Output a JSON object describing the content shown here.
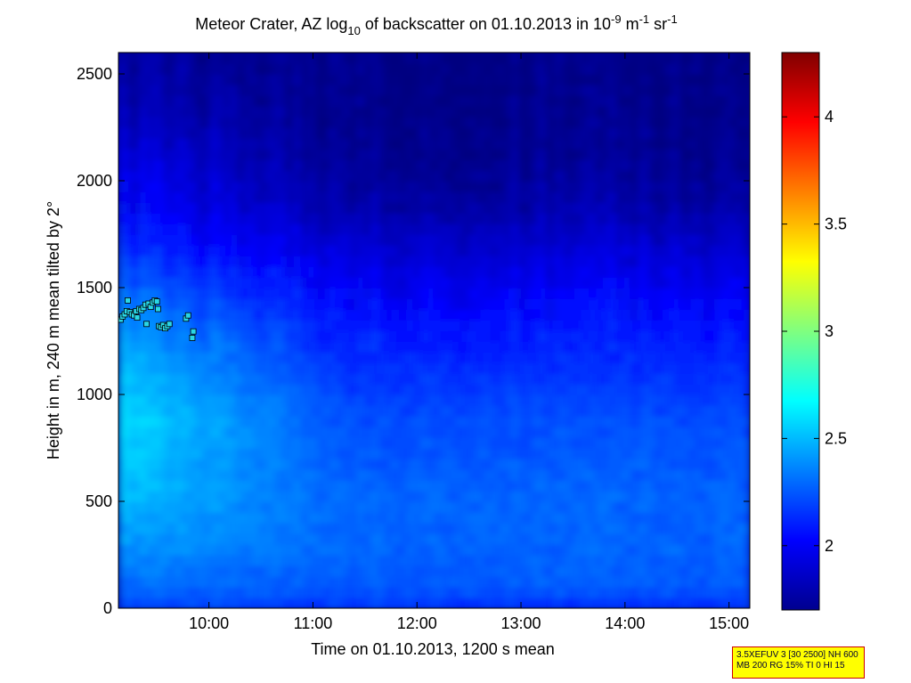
{
  "chart_data": {
    "type": "heatmap",
    "title": {
      "prefix": "Meteor Crater, AZ log",
      "sub": "10",
      "middle": " of backscatter on 01.10.2013 in 10",
      "sup1": "-9",
      "unit1": " m",
      "sup2": "-1",
      "unit2": " sr",
      "sup3": "-1"
    },
    "xlabel": "Time on 01.10.2013, 1200 s mean",
    "ylabel": "Height in m, 240 m mean tilted by 2°",
    "xlim": [
      9.13,
      15.2
    ],
    "ylim": [
      0,
      2600
    ],
    "x_ticks": [
      {
        "value": 10,
        "label": "10:00"
      },
      {
        "value": 11,
        "label": "11:00"
      },
      {
        "value": 12,
        "label": "12:00"
      },
      {
        "value": 13,
        "label": "13:00"
      },
      {
        "value": 14,
        "label": "14:00"
      },
      {
        "value": 15,
        "label": "15:00"
      }
    ],
    "y_ticks": [
      {
        "value": 0,
        "label": "0"
      },
      {
        "value": 500,
        "label": "500"
      },
      {
        "value": 1000,
        "label": "1000"
      },
      {
        "value": 1500,
        "label": "1500"
      },
      {
        "value": 2000,
        "label": "2000"
      },
      {
        "value": 2500,
        "label": "2500"
      }
    ],
    "colorbar": {
      "range": [
        1.7,
        4.3
      ],
      "colormap": "jet",
      "ticks": [
        {
          "value": 2,
          "label": "2"
        },
        {
          "value": 2.5,
          "label": "2.5"
        },
        {
          "value": 3,
          "label": "3"
        },
        {
          "value": 3.5,
          "label": "3.5"
        },
        {
          "value": 4,
          "label": "4"
        }
      ]
    },
    "heat_profile": {
      "note_heights_m": [
        0,
        100,
        300,
        500,
        700,
        900,
        1100,
        1300,
        1500,
        1700,
        1900,
        2100,
        2300,
        2600
      ],
      "values_early": [
        2.2,
        2.3,
        2.42,
        2.5,
        2.56,
        2.58,
        2.52,
        2.42,
        2.28,
        2.12,
        2.02,
        1.95,
        1.85,
        1.78
      ],
      "values_late": [
        2.15,
        2.25,
        2.28,
        2.28,
        2.25,
        2.22,
        2.15,
        2.08,
        2.0,
        1.9,
        1.8,
        1.75,
        1.73,
        1.72
      ]
    },
    "cloud_markers": {
      "color": "#29d6e6",
      "points": [
        [
          9.15,
          1350
        ],
        [
          9.17,
          1365
        ],
        [
          9.19,
          1375
        ],
        [
          9.21,
          1390
        ],
        [
          9.22,
          1440
        ],
        [
          9.24,
          1385
        ],
        [
          9.26,
          1375
        ],
        [
          9.28,
          1370
        ],
        [
          9.3,
          1390
        ],
        [
          9.31,
          1360
        ],
        [
          9.33,
          1400
        ],
        [
          9.35,
          1395
        ],
        [
          9.37,
          1405
        ],
        [
          9.39,
          1420
        ],
        [
          9.4,
          1330
        ],
        [
          9.42,
          1425
        ],
        [
          9.44,
          1410
        ],
        [
          9.46,
          1430
        ],
        [
          9.48,
          1440
        ],
        [
          9.5,
          1435
        ],
        [
          9.51,
          1400
        ],
        [
          9.52,
          1320
        ],
        [
          9.54,
          1315
        ],
        [
          9.56,
          1325
        ],
        [
          9.58,
          1310
        ],
        [
          9.6,
          1320
        ],
        [
          9.62,
          1330
        ],
        [
          9.78,
          1355
        ],
        [
          9.8,
          1370
        ],
        [
          9.84,
          1265
        ],
        [
          9.85,
          1295
        ]
      ]
    }
  },
  "info_box": {
    "line1": "3.5XEFUV 3 [30 2500] NH 600",
    "line2": "MB 200 RG 15% TI 0 HI 15"
  }
}
